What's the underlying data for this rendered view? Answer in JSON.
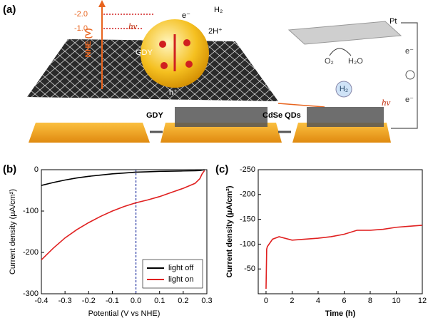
{
  "panel_a": {
    "label": "(a)",
    "nhe_axis": "NHE (V)",
    "level_1": "-2.0",
    "level_2": "-1.0",
    "hv_1": "hν",
    "electron_1": "e⁻",
    "h2_1": "H₂",
    "protons": "2H⁺",
    "gdy_sheet": "GDY",
    "hole": "h⁺",
    "pt": "Pt",
    "electron_2": "e⁻",
    "electron_3": "e⁻",
    "o2": "O₂",
    "h2o": "H₂O",
    "h2_2": "H₂",
    "hv_2": "hν",
    "step_1": "GDY",
    "step_2": "CdSe QDs"
  },
  "chart_data": [
    {
      "type": "line",
      "label": "(b)",
      "xlabel": "Potential (V vs NHE)",
      "ylabel": "Current density (μA/cm²)",
      "x": [
        -0.4,
        -0.35,
        -0.3,
        -0.25,
        -0.2,
        -0.15,
        -0.1,
        -0.05,
        0,
        0.05,
        0.1,
        0.15,
        0.2,
        0.25,
        0.27,
        0.28,
        0.29
      ],
      "series": [
        {
          "name": "light off",
          "color": "#000000",
          "values": [
            -38,
            -31,
            -25,
            -20,
            -16,
            -13,
            -10,
            -8,
            -6,
            -5,
            -4,
            -3.5,
            -3,
            -2.5,
            -2,
            -1,
            0
          ]
        },
        {
          "name": "light on",
          "color": "#e02020",
          "values": [
            -218,
            -190,
            -165,
            -145,
            -128,
            -113,
            -100,
            -89,
            -80,
            -73,
            -65,
            -55,
            -45,
            -33,
            -22,
            -10,
            -2
          ]
        }
      ],
      "xlim": [
        -0.4,
        0.3
      ],
      "ylim": [
        -300,
        0
      ],
      "xticks": [
        -0.4,
        -0.3,
        -0.2,
        -0.1,
        {
          "value": 0,
          "label": "0.0"
        },
        0.1,
        0.2,
        0.3
      ],
      "yticks": [
        -300,
        -200,
        -100,
        0
      ],
      "vline": 0,
      "vline_color": "#2030a0",
      "legend": "lower right"
    },
    {
      "type": "line",
      "label": "(c)",
      "xlabel": "Time (h)",
      "ylabel": "Current density (μA/cm²)",
      "x": [
        0,
        0.05,
        0.1,
        0.5,
        1,
        2,
        3,
        4,
        5,
        6,
        7,
        8,
        9,
        10,
        11,
        12
      ],
      "series": [
        {
          "color": "#e02020",
          "values": [
            -10,
            -90,
            -95,
            -110,
            -115,
            -108,
            -110,
            -112,
            -115,
            -120,
            -128,
            -128,
            -130,
            -134,
            -136,
            -138
          ]
        }
      ],
      "xlim": [
        -0.6,
        12
      ],
      "ylim": [
        0,
        -250
      ],
      "xticks": [
        0,
        2,
        4,
        6,
        8,
        10,
        12
      ],
      "yticks": [
        -250,
        -200,
        -150,
        -100,
        -50
      ]
    }
  ]
}
